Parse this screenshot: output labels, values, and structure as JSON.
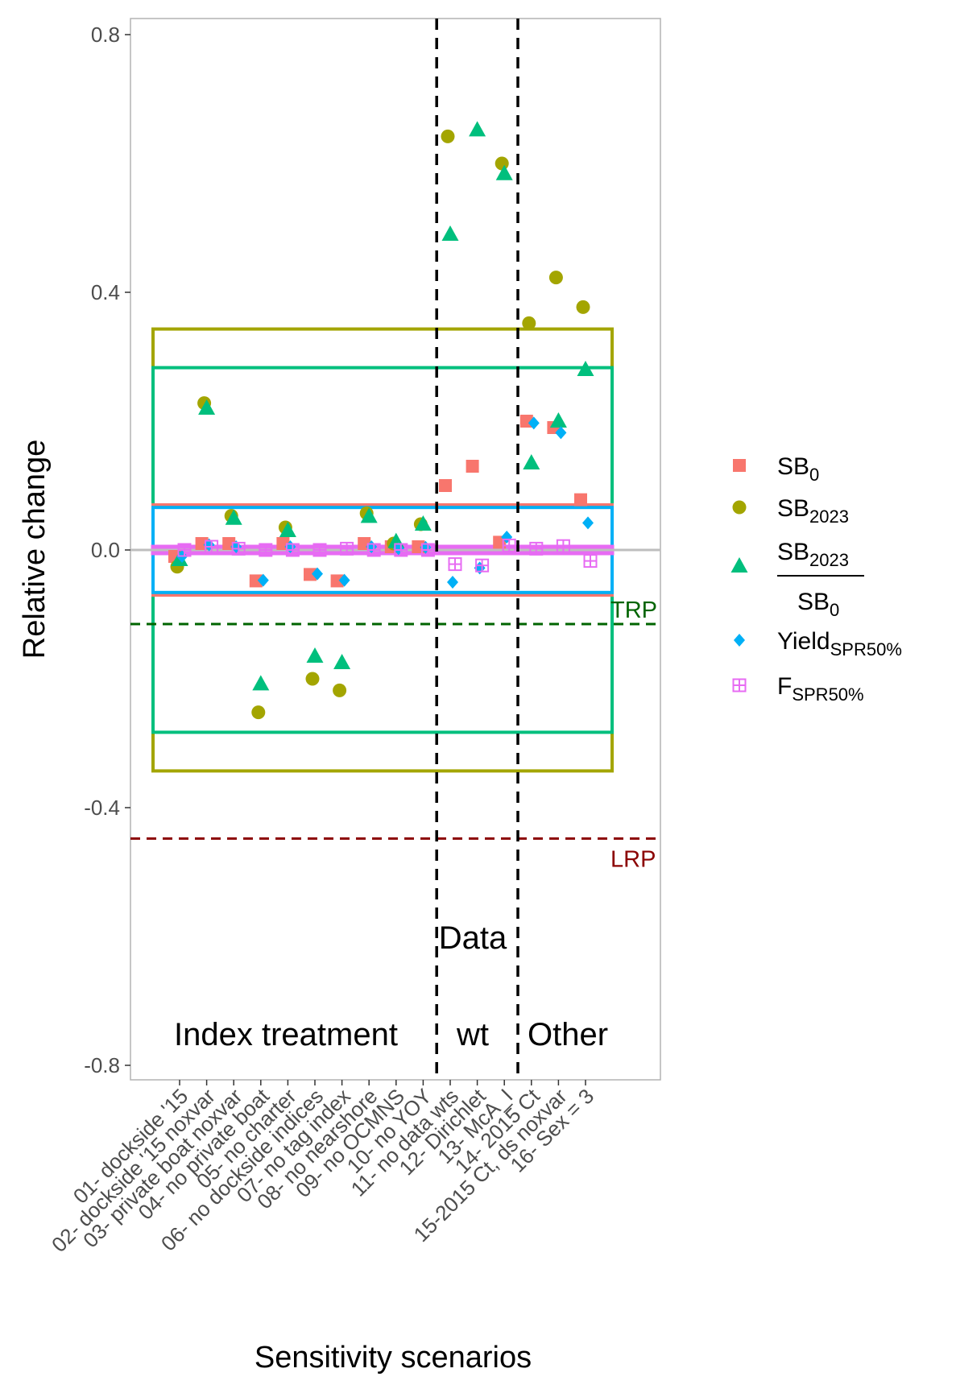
{
  "chart_data": {
    "type": "scatter",
    "xlabel": "Sensitivity scenarios",
    "ylabel": "Relative change",
    "ylim": [
      -0.82,
      0.82
    ],
    "y_ticks": [
      -0.8,
      -0.4,
      0.0,
      0.4,
      0.8
    ],
    "y_tick_labels": [
      "-0.8",
      "-0.4",
      "0.0",
      "0.4",
      "0.8"
    ],
    "categories": [
      "01- dockside '15",
      "02- dockside '15 noxvar",
      "03- private boat noxvar",
      "04- no private boat",
      "05- no charter",
      "06- no dockside indices",
      "07- no tag index",
      "08- no nearshore",
      "09- no OCMNS",
      "10- no YOY",
      "11- no data wts",
      "12- Dirichlet",
      "13- McA_I",
      "14- 2015 Ct",
      "15-2015 Ct, ds noxvar",
      "16- Sex = 3"
    ],
    "series": [
      {
        "name": "SB",
        "sub": "0",
        "color": "#F8766D",
        "shape": "square",
        "values": [
          -0.01,
          0.01,
          0.01,
          -0.048,
          0.01,
          -0.038,
          -0.048,
          0.01,
          0.005,
          0.005,
          0.1,
          0.13,
          0.012,
          0.2,
          0.19,
          0.078
        ]
      },
      {
        "name": "SB",
        "sub": "2023",
        "color": "#A3A500",
        "shape": "circle",
        "values": [
          -0.026,
          0.228,
          0.053,
          -0.252,
          0.035,
          -0.2,
          -0.218,
          0.057,
          0.01,
          0.04,
          0.642,
          null,
          0.6,
          0.352,
          0.423,
          0.377
        ]
      },
      {
        "name": "SB",
        "sub": "2023",
        "denominator": "SB",
        "denominator_sub": "0",
        "color": "#00BF7D",
        "shape": "triangle",
        "values": [
          -0.015,
          0.22,
          0.049,
          -0.208,
          0.03,
          -0.165,
          -0.175,
          0.052,
          0.013,
          0.04,
          0.49,
          0.652,
          0.584,
          0.135,
          0.2,
          0.28
        ]
      },
      {
        "name": "Yield",
        "sub": "SPR50%",
        "color": "#00B0F6",
        "shape": "diamond",
        "values": [
          -0.01,
          0.008,
          0.005,
          -0.047,
          0.005,
          -0.037,
          -0.047,
          0.005,
          0.002,
          0.004,
          -0.05,
          -0.028,
          0.02,
          0.197,
          0.182,
          0.042
        ]
      },
      {
        "name": "F",
        "sub": "SPR50%",
        "color": "#E76BF3",
        "shape": "squareplus",
        "values": [
          0.0,
          0.005,
          0.002,
          0.0,
          0.0,
          0.0,
          0.002,
          0.0,
          0.0,
          0.0,
          -0.022,
          -0.024,
          0.007,
          0.002,
          0.006,
          -0.017
        ]
      }
    ],
    "reference_lines": [
      {
        "label": "TRP",
        "y": -0.115,
        "color": "#006400",
        "style": "dashed"
      },
      {
        "label": "LRP",
        "y": -0.448,
        "color": "#8B0000",
        "style": "dashed"
      }
    ],
    "zero_line": {
      "y": 0.0,
      "color": "#BEBEBE"
    },
    "boxes": [
      {
        "color": "#A3A500",
        "ymin": -0.343,
        "ymax": 0.343
      },
      {
        "color": "#00BF7D",
        "ymin": -0.283,
        "ymax": 0.283
      },
      {
        "color": "#F8766D",
        "ymin": -0.07,
        "ymax": 0.07
      },
      {
        "color": "#00B0F6",
        "ymin": -0.066,
        "ymax": 0.066
      },
      {
        "color": "#E76BF3",
        "ymin": -0.005,
        "ymax": 0.005
      }
    ],
    "group_dividers": [
      10.5,
      13.5
    ],
    "group_labels": [
      "Index treatment",
      "Data",
      "wt",
      "Other"
    ],
    "legend": {
      "position": "right"
    },
    "grid": false
  }
}
